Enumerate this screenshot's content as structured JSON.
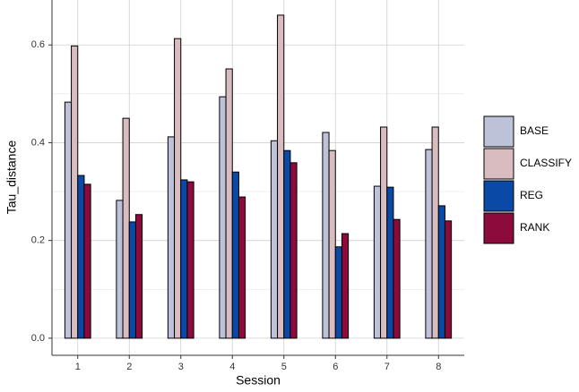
{
  "chart_data": {
    "type": "bar",
    "x_label": "Session",
    "y_label": "Tau_distance",
    "categories": [
      "1",
      "2",
      "3",
      "4",
      "5",
      "6",
      "7",
      "8"
    ],
    "series": [
      {
        "name": "BASE",
        "color": "#bec2d8",
        "values": [
          0.483,
          0.282,
          0.412,
          0.494,
          0.404,
          0.421,
          0.311,
          0.386
        ]
      },
      {
        "name": "CLASSIFY",
        "color": "#d9bcc0",
        "values": [
          0.598,
          0.45,
          0.613,
          0.551,
          0.661,
          0.384,
          0.432,
          0.432
        ]
      },
      {
        "name": "REG",
        "color": "#0a4aa6",
        "values": [
          0.333,
          0.238,
          0.324,
          0.34,
          0.384,
          0.187,
          0.309,
          0.271
        ]
      },
      {
        "name": "RANK",
        "color": "#8c0a3c",
        "values": [
          0.315,
          0.253,
          0.32,
          0.289,
          0.359,
          0.214,
          0.243,
          0.24
        ]
      }
    ],
    "ylim": [
      -0.035,
      0.692
    ],
    "yticks": [
      {
        "value": 0,
        "label": "0.0"
      },
      {
        "value": 0.2,
        "label": "0.2"
      },
      {
        "value": 0.4,
        "label": "0.4"
      },
      {
        "value": 0.6,
        "label": "0.6"
      }
    ],
    "grid": true,
    "legend": "right"
  }
}
